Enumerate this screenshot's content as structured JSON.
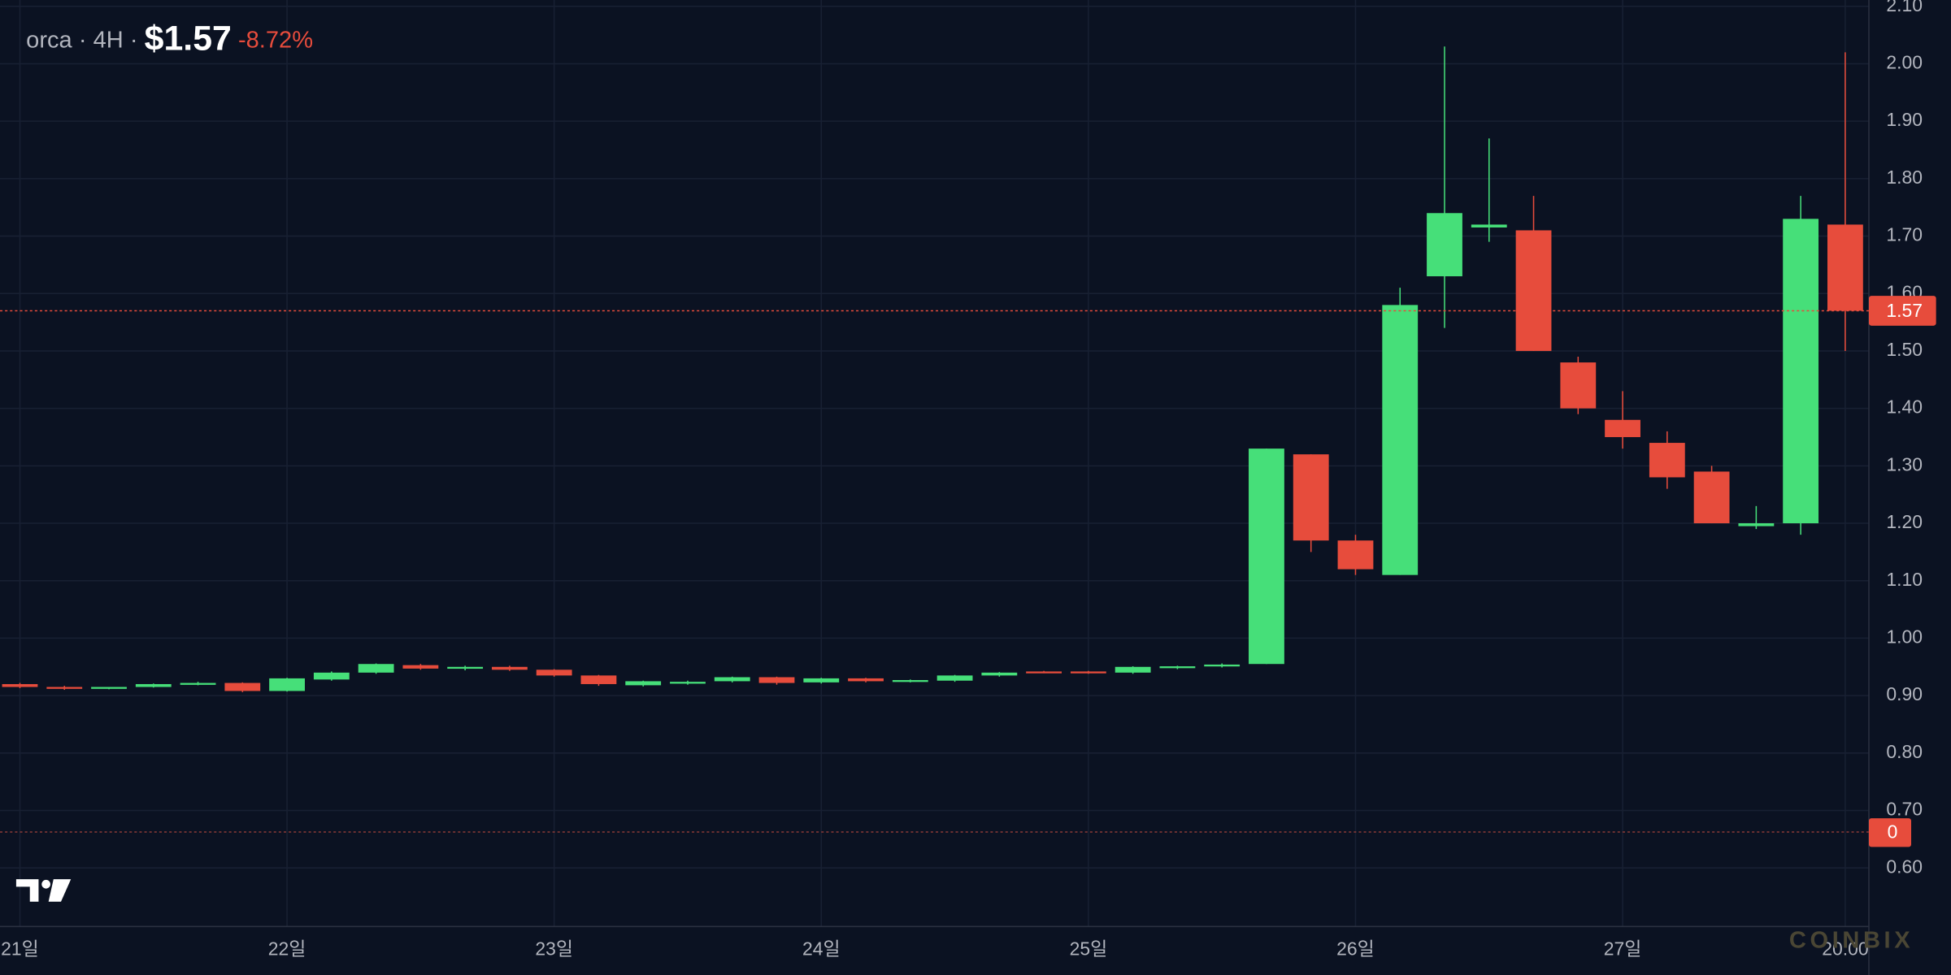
{
  "chart_data": {
    "type": "candlestick",
    "header": {
      "symbol": "orca",
      "separator": "·",
      "interval": "4H",
      "price": "$1.57",
      "change": "-8.72%"
    },
    "categories": [
      "21일",
      null,
      null,
      null,
      null,
      null,
      "22일",
      null,
      null,
      null,
      null,
      null,
      "23일",
      null,
      null,
      null,
      null,
      null,
      "24일",
      null,
      null,
      null,
      null,
      null,
      "25일",
      null,
      null,
      null,
      null,
      null,
      "26일",
      null,
      null,
      null,
      null,
      null,
      "27일",
      null,
      null,
      null,
      null,
      "20:00"
    ],
    "open": [
      0.92,
      0.915,
      0.913,
      0.915,
      0.92,
      0.922,
      0.908,
      0.928,
      0.94,
      0.953,
      0.947,
      0.95,
      0.945,
      0.935,
      0.918,
      0.922,
      0.925,
      0.932,
      0.923,
      0.93,
      0.925,
      0.926,
      0.935,
      0.942,
      0.942,
      0.94,
      0.948,
      0.951,
      0.955,
      1.32,
      1.17,
      1.11,
      1.63,
      1.715,
      1.71,
      1.48,
      1.38,
      1.34,
      1.29,
      1.195,
      1.2,
      1.72
    ],
    "high": [
      0.922,
      0.917,
      0.915,
      0.921,
      0.924,
      0.923,
      0.931,
      0.942,
      0.956,
      0.955,
      0.952,
      0.952,
      0.946,
      0.936,
      0.926,
      0.926,
      0.933,
      0.933,
      0.931,
      0.931,
      0.928,
      0.936,
      0.941,
      0.943,
      0.943,
      0.951,
      0.952,
      0.956,
      1.33,
      1.32,
      1.18,
      1.61,
      2.03,
      1.87,
      1.77,
      1.49,
      1.43,
      1.36,
      1.3,
      1.23,
      1.77,
      2.02
    ],
    "low": [
      0.913,
      0.91,
      0.911,
      0.914,
      0.918,
      0.906,
      0.907,
      0.926,
      0.938,
      0.945,
      0.944,
      0.943,
      0.933,
      0.917,
      0.916,
      0.919,
      0.923,
      0.919,
      0.921,
      0.923,
      0.923,
      0.924,
      0.933,
      0.939,
      0.938,
      0.938,
      0.946,
      0.949,
      0.955,
      1.15,
      1.11,
      1.11,
      1.54,
      1.69,
      1.5,
      1.39,
      1.33,
      1.26,
      1.2,
      1.19,
      1.18,
      1.5
    ],
    "close": [
      0.915,
      0.912,
      0.915,
      0.92,
      0.922,
      0.908,
      0.93,
      0.94,
      0.955,
      0.947,
      0.95,
      0.945,
      0.935,
      0.92,
      0.925,
      0.924,
      0.932,
      0.922,
      0.93,
      0.925,
      0.927,
      0.935,
      0.94,
      0.941,
      0.94,
      0.95,
      0.951,
      0.954,
      1.33,
      1.17,
      1.12,
      1.58,
      1.74,
      1.72,
      1.5,
      1.4,
      1.35,
      1.28,
      1.2,
      1.2,
      1.73,
      1.57
    ],
    "up_color": "#46df79",
    "down_color": "#e74c3c",
    "ylim": [
      0.498,
      2.111
    ],
    "yticks": [
      {
        "value": 0.6,
        "label": "0.60"
      },
      {
        "value": 0.7,
        "label": "0.70"
      },
      {
        "value": 0.8,
        "label": "0.80"
      },
      {
        "value": 0.9,
        "label": "0.90"
      },
      {
        "value": 1.0,
        "label": "1.00"
      },
      {
        "value": 1.1,
        "label": "1.10"
      },
      {
        "value": 1.2,
        "label": "1.20"
      },
      {
        "value": 1.3,
        "label": "1.30"
      },
      {
        "value": 1.4,
        "label": "1.40"
      },
      {
        "value": 1.5,
        "label": "1.50"
      },
      {
        "value": 1.6,
        "label": "1.60"
      },
      {
        "value": 1.7,
        "label": "1.70"
      },
      {
        "value": 1.8,
        "label": "1.80"
      },
      {
        "value": 1.9,
        "label": "1.90"
      },
      {
        "value": 2.0,
        "label": "2.00"
      },
      {
        "value": 2.1,
        "label": "2.10"
      }
    ],
    "grid": true,
    "last_price": 1.57,
    "volume_zero": 0,
    "watermark": "COINBIX"
  }
}
